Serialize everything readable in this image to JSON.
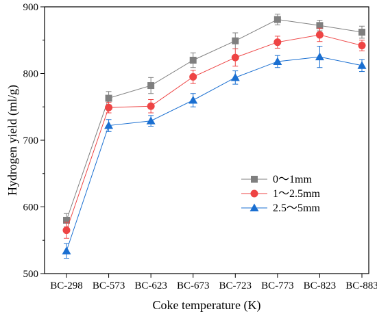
{
  "chart_data": {
    "type": "line",
    "xlabel": "Coke temperature (K)",
    "ylabel": "Hydrogen yield (ml/g)",
    "ylim": [
      500,
      900
    ],
    "yticks": [
      500,
      600,
      700,
      800,
      900
    ],
    "categories": [
      "BC-298",
      "BC-573",
      "BC-623",
      "BC-673",
      "BC-723",
      "BC-773",
      "BC-823",
      "BC-883"
    ],
    "legend_position": "center-right",
    "grid": false,
    "series": [
      {
        "name": "0～1mm",
        "color": "#7f7f7f",
        "marker": "square",
        "values": [
          580,
          763,
          782,
          820,
          849,
          881,
          872,
          862
        ],
        "errors": [
          10,
          10,
          12,
          11,
          12,
          8,
          8,
          9
        ]
      },
      {
        "name": "1～2.5mm",
        "color": "#ee4444",
        "marker": "circle",
        "values": [
          565,
          749,
          751,
          795,
          824,
          847,
          858,
          842
        ],
        "errors": [
          12,
          8,
          10,
          10,
          13,
          9,
          10,
          8
        ]
      },
      {
        "name": "2.5～5mm",
        "color": "#1a6fd1",
        "marker": "triangle",
        "values": [
          534,
          722,
          729,
          760,
          794,
          818,
          825,
          812
        ],
        "errors": [
          11,
          9,
          8,
          10,
          10,
          9,
          16,
          9
        ]
      }
    ]
  }
}
